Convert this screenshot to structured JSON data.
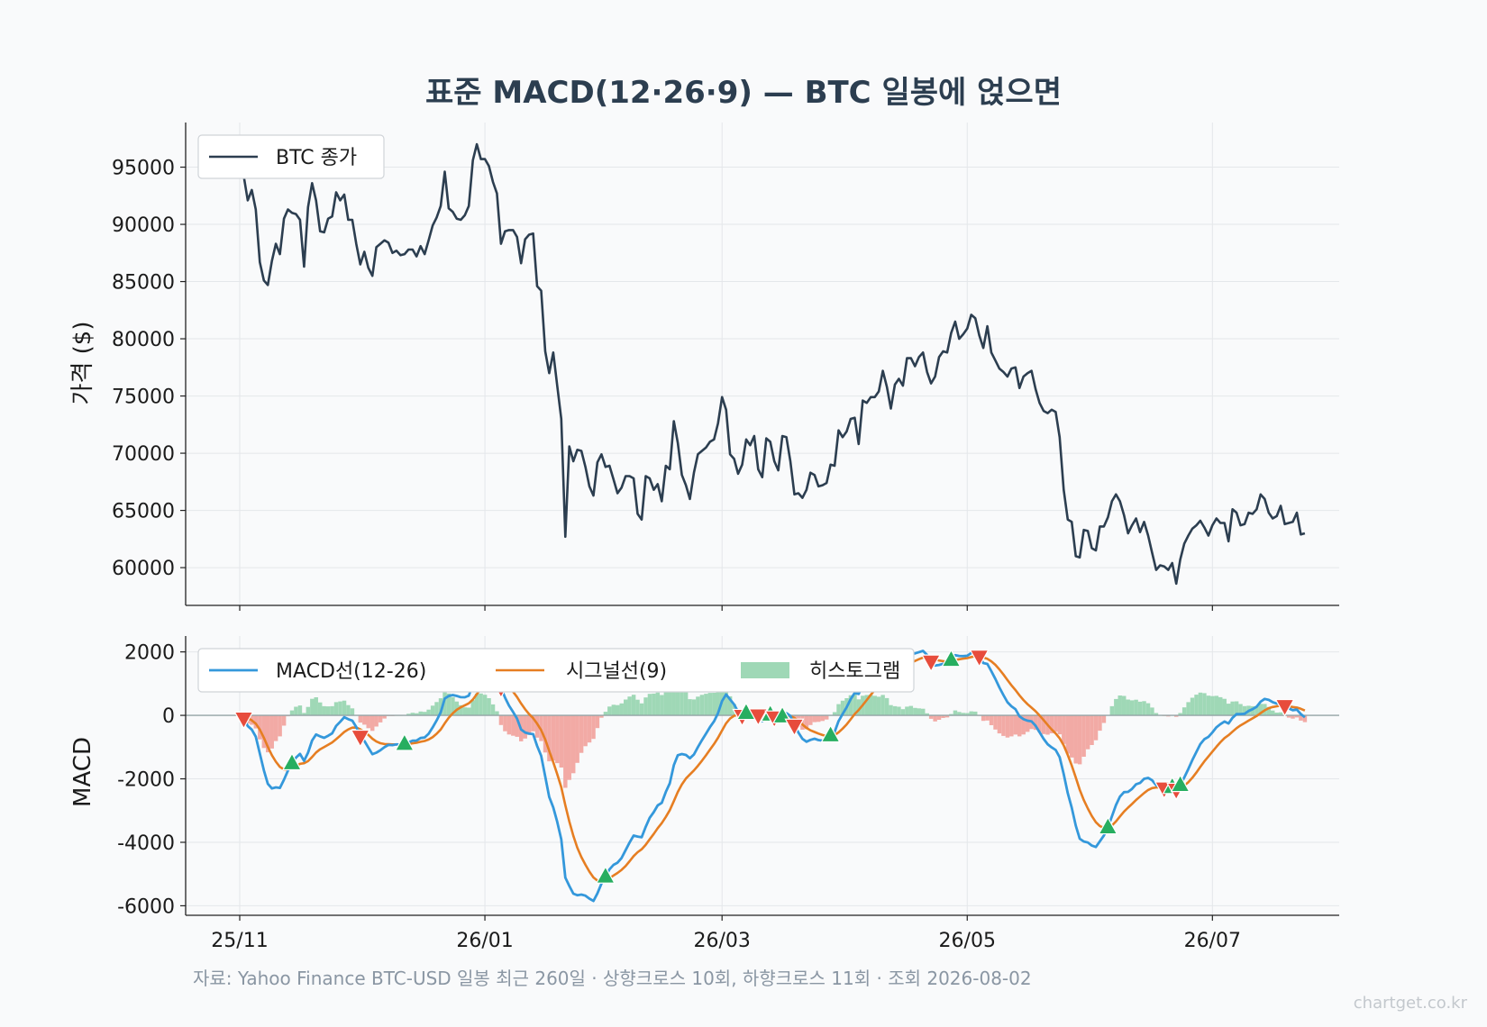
{
  "title": "표준 MACD(12·26·9) — BTC 일봉에 얹으면",
  "source": "자료: Yahoo Finance BTC-USD 일봉 최근 260일 · 상향크로스 10회, 하향크로스 11회 · 조회 2026-08-02",
  "watermark": "chartget.co.kr",
  "colors": {
    "price": "#2c3e50",
    "macd": "#3498db",
    "signal": "#e67e22",
    "hist_pos": "#9fd8b6",
    "hist_neg": "#f2aaa5",
    "cross_up": "#27ae60",
    "cross_down": "#e74c3c",
    "zero_line": "#95a5a6"
  },
  "chart_data": [
    {
      "type": "line",
      "panel": "price",
      "ylabel": "가격 ($)",
      "ylim": [
        56700,
        98900
      ],
      "yticks": [
        60000,
        65000,
        70000,
        75000,
        80000,
        85000,
        90000,
        95000
      ],
      "x_ticks": [
        "25/11",
        "26/01",
        "26/03",
        "26/05",
        "26/07"
      ],
      "legend": [
        "BTC 종가"
      ],
      "legend_position": "upper left",
      "grid": true,
      "series": [
        {
          "name": "BTC 종가",
          "x_start": "2025-11-01",
          "y": [
            95400,
            94200,
            92100,
            93000,
            91300,
            86700,
            85100,
            84700,
            86800,
            88300,
            87400,
            90500,
            91300,
            91000,
            90900,
            90400,
            86300,
            91500,
            93600,
            92100,
            89400,
            89300,
            90500,
            90700,
            92800,
            92100,
            92600,
            90400,
            90400,
            88300,
            86500,
            87600,
            86200,
            85500,
            88000,
            88300,
            88600,
            88400,
            87500,
            87700,
            87300,
            87400,
            87800,
            87800,
            87200,
            88100,
            87400,
            88600,
            89900,
            90600,
            91600,
            94600,
            91400,
            91100,
            90500,
            90400,
            90800,
            91600,
            95600,
            97000,
            95700,
            95700,
            95100,
            93700,
            92700,
            88300,
            89400,
            89500,
            89500,
            88900,
            86600,
            88700,
            89100,
            89200,
            84600,
            84200,
            78900,
            77000,
            78800,
            75900,
            73000,
            62700,
            70600,
            69300,
            70300,
            70200,
            68800,
            67100,
            66300,
            69200,
            69900,
            68800,
            68900,
            67700,
            66500,
            67000,
            68000,
            68000,
            67800,
            64700,
            64200,
            68000,
            67800,
            66800,
            67300,
            65800,
            68900,
            68600,
            72800,
            70900,
            68100,
            67200,
            66000,
            68300,
            69900,
            70200,
            70500,
            71000,
            71200,
            72600,
            74900,
            73800,
            69900,
            69500,
            68200,
            69000,
            71200,
            70700,
            71500,
            68600,
            67900,
            71300,
            71000,
            69300,
            68500,
            71500,
            71400,
            69300,
            66400,
            66500,
            66100,
            66800,
            68300,
            68100,
            67100,
            67200,
            67400,
            69000,
            68900,
            72000,
            71400,
            71900,
            73000,
            73100,
            70800,
            74600,
            74400,
            74900,
            74900,
            75400,
            77200,
            75800,
            73900,
            76000,
            76500,
            75900,
            78300,
            78300,
            77600,
            78400,
            78800,
            77100,
            76100,
            76700,
            78400,
            78900,
            78800,
            80500,
            81500,
            80000,
            80400,
            80900,
            82100,
            81800,
            80300,
            79200,
            81100,
            78800,
            78100,
            77400,
            77100,
            76700,
            77400,
            77500,
            75700,
            76700,
            77000,
            77200,
            75600,
            74400,
            73700,
            73500,
            73800,
            73600,
            71400,
            66800,
            64200,
            64000,
            61000,
            60900,
            63300,
            63200,
            61700,
            61500,
            63600,
            63600,
            64400,
            65800,
            66400,
            65800,
            64600,
            63000,
            63700,
            64300,
            63100,
            64000,
            62800,
            61300,
            59800,
            60200,
            60100,
            59800,
            60400,
            58600,
            60700,
            62100,
            62800,
            63400,
            63700,
            64100,
            63500,
            62800,
            63700,
            64300,
            63900,
            63900,
            62300,
            65100,
            64800,
            63700,
            63800,
            64800,
            64700,
            65100,
            66400,
            66000,
            64800,
            64300,
            64500,
            65400,
            63800,
            63900,
            64000,
            64800,
            62900,
            63000
          ]
        }
      ]
    },
    {
      "type": "line",
      "panel": "macd",
      "ylabel": "MACD",
      "ylim": [
        -6300,
        2500
      ],
      "yticks": [
        -6000,
        -4000,
        -2000,
        0,
        2000
      ],
      "x_ticks": [
        "25/11",
        "26/01",
        "26/03",
        "26/05",
        "26/07"
      ],
      "legend": [
        "MACD선(12-26)",
        "시그널선(9)",
        "히스토그램"
      ],
      "legend_position": "upper left",
      "grid": true,
      "series": [
        {
          "name": "MACD선(12-26)"
        },
        {
          "name": "시그널선(9)"
        },
        {
          "name": "히스토그램",
          "type": "bar"
        }
      ],
      "crosses_up": 10,
      "crosses_down": 11
    }
  ]
}
